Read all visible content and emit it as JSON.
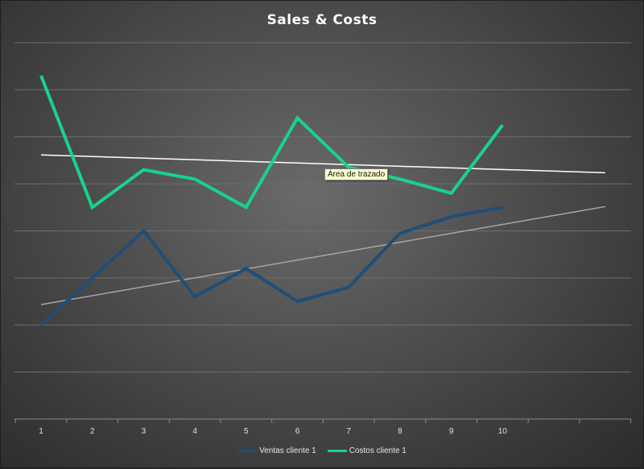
{
  "chart_data": {
    "type": "line",
    "title": "Sales & Costs",
    "xlabel": "",
    "ylabel": "",
    "categories": [
      "1",
      "2",
      "3",
      "4",
      "5",
      "6",
      "7",
      "8",
      "9",
      "10"
    ],
    "series": [
      {
        "name": "Ventas cliente 1",
        "color": "#1f4e79",
        "values": [
          2.0,
          3.0,
          4.0,
          2.6,
          3.2,
          2.5,
          2.8,
          3.95,
          4.3,
          4.5
        ],
        "trendline": true,
        "trendline_color": "#a6a6a6"
      },
      {
        "name": "Costos cliente 1",
        "color": "#19d38b",
        "values": [
          7.3,
          4.5,
          5.3,
          5.1,
          4.5,
          6.4,
          5.35,
          5.1,
          4.8,
          6.25
        ],
        "trendline": true,
        "trendline_color": "#ffffff"
      }
    ],
    "ylim": [
      0,
      8
    ],
    "xlim": [
      1,
      12
    ],
    "gridlines": true,
    "legend": "bottom"
  },
  "tooltip": {
    "text": "Área de trazado"
  }
}
